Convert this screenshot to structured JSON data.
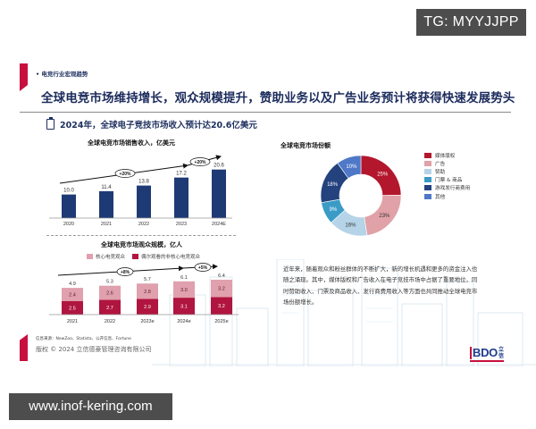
{
  "watermarks": {
    "top_right": "TG: MYYJJPP",
    "bottom_left": "www.inof-kering.com"
  },
  "slide": {
    "section_tag": "• 电竞行业宏观趋势",
    "headline": "全球电竞市场维持增长，观众规模提升，赞助业务以及广告业务预计将获得快速发展势头",
    "subhead": "2024年，全球电子竞技市场收入预计达20.6亿美元",
    "paragraph": "近年来，随着观众和粉丝群体的不断扩大，新的增长机遇和更多的资金注入也随之涌现。其中，媒体版权和广告收入在电子竞技市场中占据了重要地位，同时赞助收入、门票及商品收入、发行商费用收入等方面也共同推动全球电竞市场份额增长。",
    "source": "信息来源：NewZoo、Statista、公开信息、Fortune",
    "copyright": "版权 © 2024 立信德豪管理咨询有限公司",
    "logo": {
      "text": "BDO",
      "cn": "立信"
    }
  },
  "colors": {
    "accent_red": "#c8103e",
    "navy": "#1e3a75",
    "title_navy": "#1b2b5c",
    "core_audience": "#e0a0ad",
    "occasional_audience": "#b0153f"
  },
  "chart_data": [
    {
      "type": "bar",
      "title": "全球电竞市场销售收入，亿美元",
      "categories": [
        "2020",
        "2021",
        "2022",
        "2023",
        "2024E"
      ],
      "values": [
        10.0,
        11.4,
        13.8,
        17.2,
        20.6
      ],
      "value_labels": [
        "10.0",
        "11.4",
        "13.8",
        "17.2",
        "20.6"
      ],
      "annotations": [
        "+20%",
        "+20%"
      ],
      "color": "#1e3a75",
      "xlabel": "",
      "ylabel": "亿美元"
    },
    {
      "type": "bar",
      "stacked": true,
      "title": "全球电竞市场观众规模，亿人",
      "categories": [
        "2021",
        "2022",
        "2023e",
        "2024e",
        "2025e"
      ],
      "series": [
        {
          "name": "偶尔观看的非核心电竞观众",
          "values": [
            2.5,
            2.7,
            2.9,
            3.1,
            3.2
          ],
          "color": "#b0153f"
        },
        {
          "name": "核心电竞观众",
          "values": [
            2.4,
            2.6,
            2.8,
            3.0,
            3.2
          ],
          "color": "#e0a0ad"
        }
      ],
      "totals": [
        "4.9",
        "5.3",
        "5.7",
        "6.1",
        "6.4"
      ],
      "legend": [
        "核心电竞观众",
        "偶尔观看的非核心电竞观众"
      ],
      "annotations": [
        "+8%",
        "+5%"
      ],
      "ylabel": "亿人"
    },
    {
      "type": "pie",
      "donut": true,
      "title": "全球电竞市场份额",
      "labels": [
        "媒体版权",
        "广告",
        "赞助",
        "门票 & 商品",
        "游戏发行商费用",
        "其他"
      ],
      "values": [
        25,
        23,
        16,
        9,
        18,
        10
      ],
      "value_labels": [
        "25%",
        "23%",
        "16%",
        "9%",
        "18%",
        "10%"
      ],
      "colors": [
        "#b3172d",
        "#e0a1a7",
        "#b5d4e8",
        "#3a9bc6",
        "#23427e",
        "#4f78c8"
      ],
      "legend_position": "right"
    }
  ]
}
